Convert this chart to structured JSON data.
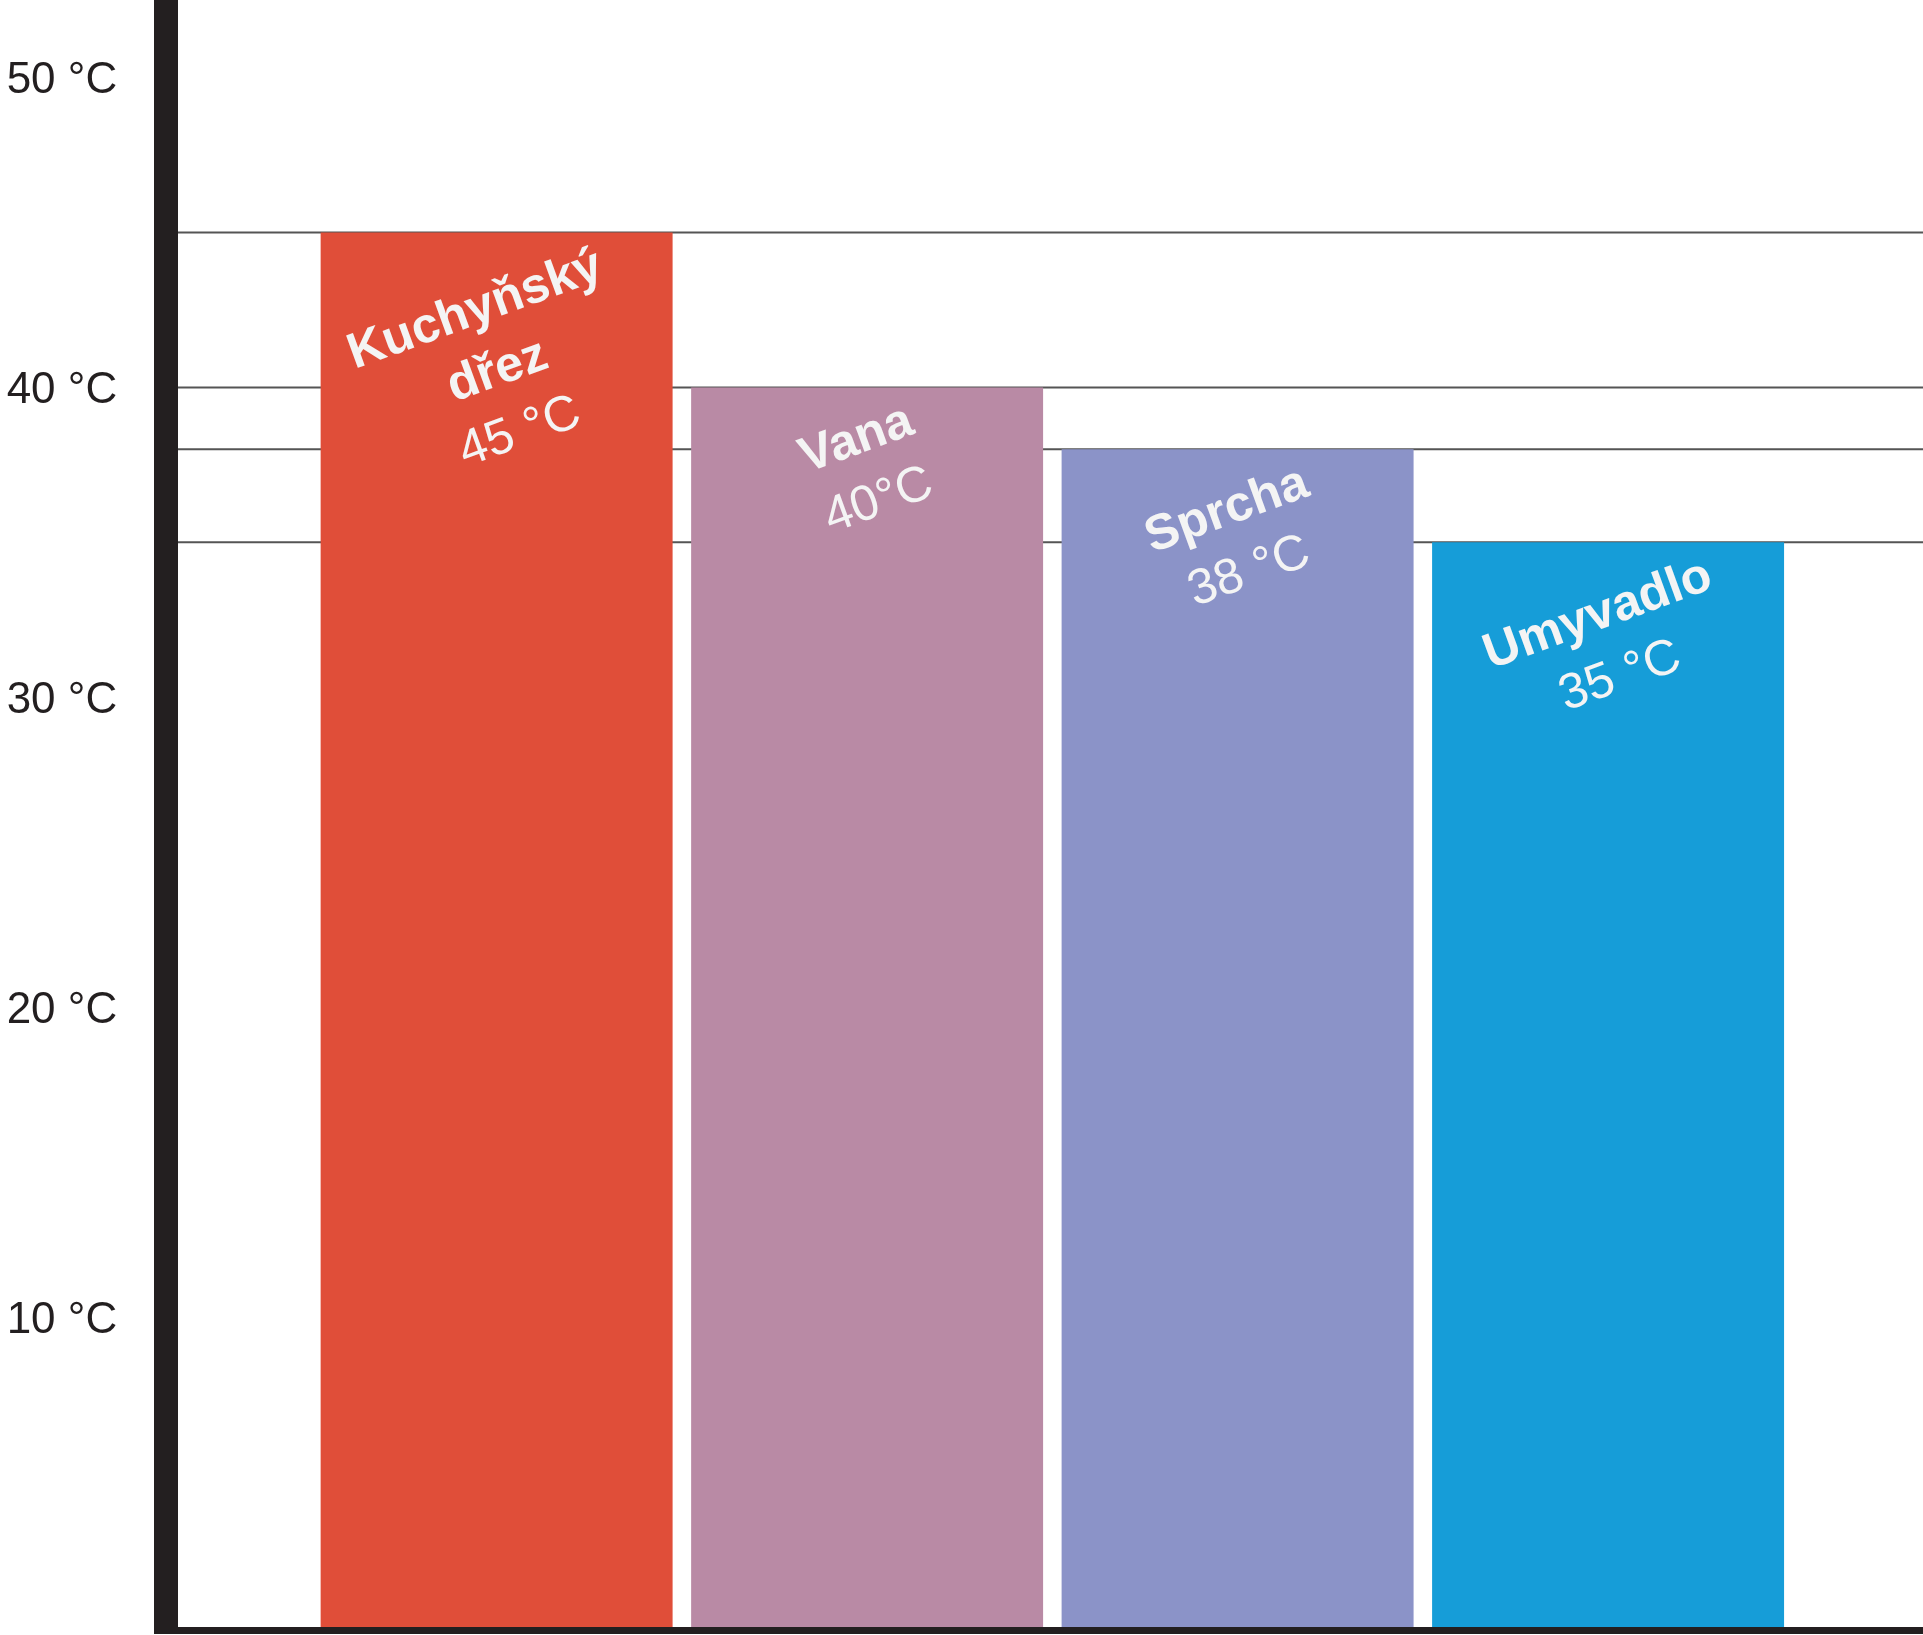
{
  "chart_data": {
    "type": "bar",
    "categories": [
      "Kuchyňský dřez",
      "Vana",
      "Sprcha",
      "Umyvadlo"
    ],
    "values": [
      45,
      40,
      38,
      35
    ],
    "colors": [
      "#e04e39",
      "#b98aa5",
      "#8b93c8",
      "#169dd8"
    ],
    "value_labels": [
      "45 °C",
      "40°C",
      "38 °C",
      "35 °C"
    ],
    "ylim": [
      0,
      52.5
    ],
    "yticks": [
      {
        "value": 10,
        "label": "10 °C"
      },
      {
        "value": 20,
        "label": "20 °C"
      },
      {
        "value": 30,
        "label": "30 °C"
      },
      {
        "value": 40,
        "label": "40 °C"
      },
      {
        "value": 50,
        "label": "50 °C"
      }
    ],
    "ref_lines": [
      {
        "axis": "y",
        "value": 45,
        "color": "#555555"
      },
      {
        "axis": "y",
        "value": 40,
        "color": "#555555"
      },
      {
        "axis": "y",
        "value": 38,
        "color": "#555555"
      },
      {
        "axis": "y",
        "value": 35,
        "color": "#555555"
      }
    ],
    "tick_labels": "y"
  }
}
